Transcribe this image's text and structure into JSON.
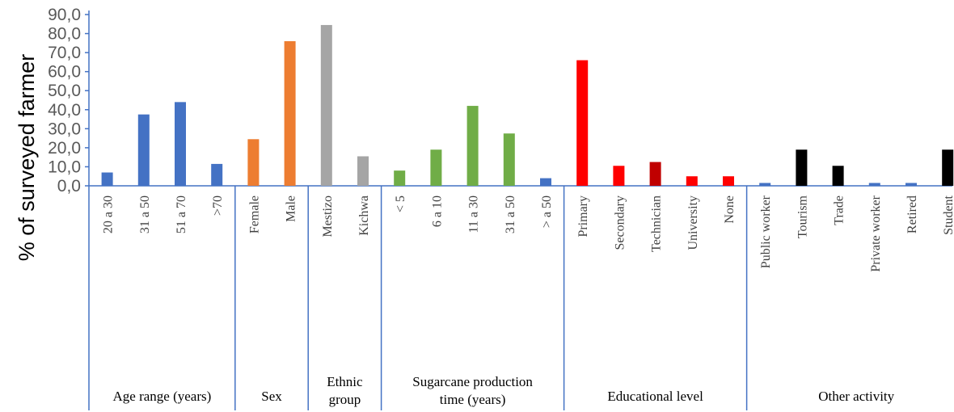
{
  "chart_data": {
    "type": "bar",
    "ylabel": "% of surveyed farmer",
    "ylim": [
      0,
      90
    ],
    "ytick_step": 10,
    "ytick_labels": [
      "0,0",
      "10,0",
      "20,0",
      "30,0",
      "40,0",
      "50,0",
      "60,0",
      "70,0",
      "80,0",
      "90,0"
    ],
    "grid": false,
    "groups": [
      {
        "label": "Age range (years)",
        "bars": [
          {
            "category": "20 a 30",
            "value": 7,
            "color": "#4472C4"
          },
          {
            "category": "31 a 50",
            "value": 37.5,
            "color": "#4472C4"
          },
          {
            "category": "51 a 70",
            "value": 44,
            "color": "#4472C4"
          },
          {
            "category": ">70",
            "value": 11.5,
            "color": "#4472C4"
          }
        ]
      },
      {
        "label": "Sex",
        "bars": [
          {
            "category": "Female",
            "value": 24.5,
            "color": "#ED7D31"
          },
          {
            "category": "Male",
            "value": 76,
            "color": "#ED7D31"
          }
        ]
      },
      {
        "label": "Ethnic group",
        "label_lines": [
          "Ethnic",
          "group"
        ],
        "bars": [
          {
            "category": "Mestizo",
            "value": 84.5,
            "color": "#A5A5A5"
          },
          {
            "category": "Kichwa",
            "value": 15.5,
            "color": "#A5A5A5"
          }
        ]
      },
      {
        "label": "Sugarcane production time (years)",
        "label_lines": [
          "Sugarcane production",
          "time (years)"
        ],
        "bars": [
          {
            "category": "< 5",
            "value": 8,
            "color": "#70AD47"
          },
          {
            "category": "6 a 10",
            "value": 19,
            "color": "#70AD47"
          },
          {
            "category": "11 a 30",
            "value": 42,
            "color": "#70AD47"
          },
          {
            "category": "31 a 50",
            "value": 27.5,
            "color": "#70AD47"
          },
          {
            "category": "> a 50",
            "value": 4,
            "color": "#4472C4"
          }
        ]
      },
      {
        "label": "Educational level",
        "bars": [
          {
            "category": "Primary",
            "value": 66,
            "color": "#FF0000"
          },
          {
            "category": "Secondary",
            "value": 10.5,
            "color": "#FF0000"
          },
          {
            "category": "Technician",
            "value": 12.5,
            "color": "#C00000"
          },
          {
            "category": "University",
            "value": 5,
            "color": "#FF0000"
          },
          {
            "category": "None",
            "value": 5,
            "color": "#FF0000"
          }
        ]
      },
      {
        "label": "Other activity",
        "bars": [
          {
            "category": "Public worker",
            "value": 1.5,
            "color": "#4472C4"
          },
          {
            "category": "Tourism",
            "value": 19,
            "color": "#000000"
          },
          {
            "category": "Trade",
            "value": 10.5,
            "color": "#000000"
          },
          {
            "category": "Private worker",
            "value": 1.5,
            "color": "#4472C4"
          },
          {
            "category": "Retired",
            "value": 1.5,
            "color": "#4472C4"
          },
          {
            "category": "Student",
            "value": 19,
            "color": "#000000"
          }
        ]
      }
    ],
    "axis_color": "#4472C4"
  }
}
